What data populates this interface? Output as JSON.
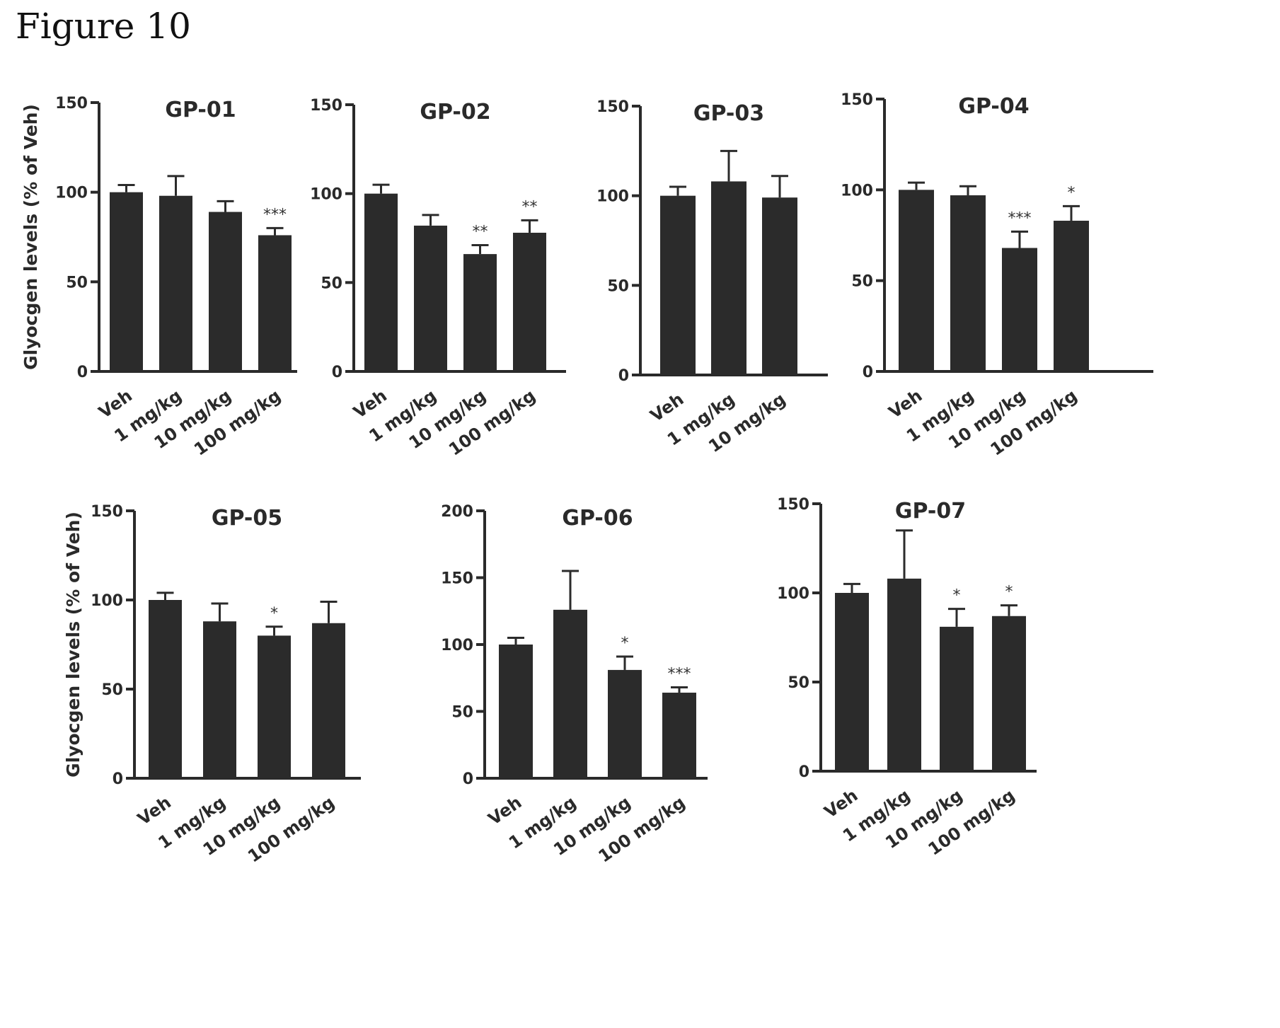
{
  "figure_title": "Figure 10",
  "colors": {
    "bar": "#2b2b2b",
    "axis": "#2a2a2a",
    "background": "#ffffff"
  },
  "chart_data": [
    {
      "type": "bar",
      "title": "GP-01",
      "ylabel": "Glyocgen levels (% of Veh)",
      "ylim": [
        0,
        150
      ],
      "yticks": [
        0,
        50,
        100,
        150
      ],
      "categories": [
        "Veh",
        "1 mg/kg",
        "10 mg/kg",
        "100 mg/kg"
      ],
      "values": [
        100,
        98,
        89,
        76
      ],
      "errors": [
        4,
        11,
        6,
        4
      ],
      "significance": [
        "",
        "",
        "",
        "***"
      ]
    },
    {
      "type": "bar",
      "title": "GP-02",
      "ylabel": "",
      "ylim": [
        0,
        150
      ],
      "yticks": [
        0,
        50,
        100,
        150
      ],
      "categories": [
        "Veh",
        "1 mg/kg",
        "10 mg/kg",
        "100 mg/kg"
      ],
      "values": [
        100,
        82,
        66,
        78
      ],
      "errors": [
        5,
        6,
        5,
        7
      ],
      "significance": [
        "",
        "",
        "**",
        "**"
      ]
    },
    {
      "type": "bar",
      "title": "GP-03",
      "ylabel": "",
      "ylim": [
        0,
        150
      ],
      "yticks": [
        0,
        50,
        100,
        150
      ],
      "categories": [
        "Veh",
        "1 mg/kg",
        "10 mg/kg"
      ],
      "values": [
        100,
        108,
        99
      ],
      "errors": [
        5,
        17,
        12
      ],
      "significance": [
        "",
        "",
        ""
      ]
    },
    {
      "type": "bar",
      "title": "GP-04",
      "ylabel": "",
      "ylim": [
        0,
        150
      ],
      "yticks": [
        0,
        50,
        100,
        150
      ],
      "categories": [
        "Veh",
        "1 mg/kg",
        "10 mg/kg",
        "100 mg/kg"
      ],
      "values": [
        100,
        97,
        68,
        83
      ],
      "errors": [
        4,
        5,
        9,
        8
      ],
      "significance": [
        "",
        "",
        "***",
        "*"
      ]
    },
    {
      "type": "bar",
      "title": "GP-05",
      "ylabel": "Glyocgen levels (% of Veh)",
      "ylim": [
        0,
        150
      ],
      "yticks": [
        0,
        50,
        100,
        150
      ],
      "categories": [
        "Veh",
        "1 mg/kg",
        "10 mg/kg",
        "100 mg/kg"
      ],
      "values": [
        100,
        88,
        80,
        87
      ],
      "errors": [
        4,
        10,
        5,
        12
      ],
      "significance": [
        "",
        "",
        "*",
        ""
      ]
    },
    {
      "type": "bar",
      "title": "GP-06",
      "ylabel": "",
      "ylim": [
        0,
        200
      ],
      "yticks": [
        0,
        50,
        100,
        150,
        200
      ],
      "categories": [
        "Veh",
        "1 mg/kg",
        "10 mg/kg",
        "100 mg/kg"
      ],
      "values": [
        100,
        126,
        81,
        64
      ],
      "errors": [
        5,
        29,
        10,
        4
      ],
      "significance": [
        "",
        "",
        "*",
        "***"
      ]
    },
    {
      "type": "bar",
      "title": "GP-07",
      "ylabel": "",
      "ylim": [
        0,
        150
      ],
      "yticks": [
        0,
        50,
        100,
        150
      ],
      "categories": [
        "Veh",
        "1 mg/kg",
        "10 mg/kg",
        "100 mg/kg"
      ],
      "values": [
        100,
        108,
        81,
        87
      ],
      "errors": [
        5,
        27,
        10,
        6
      ],
      "significance": [
        "",
        "",
        "*",
        "*"
      ]
    }
  ]
}
